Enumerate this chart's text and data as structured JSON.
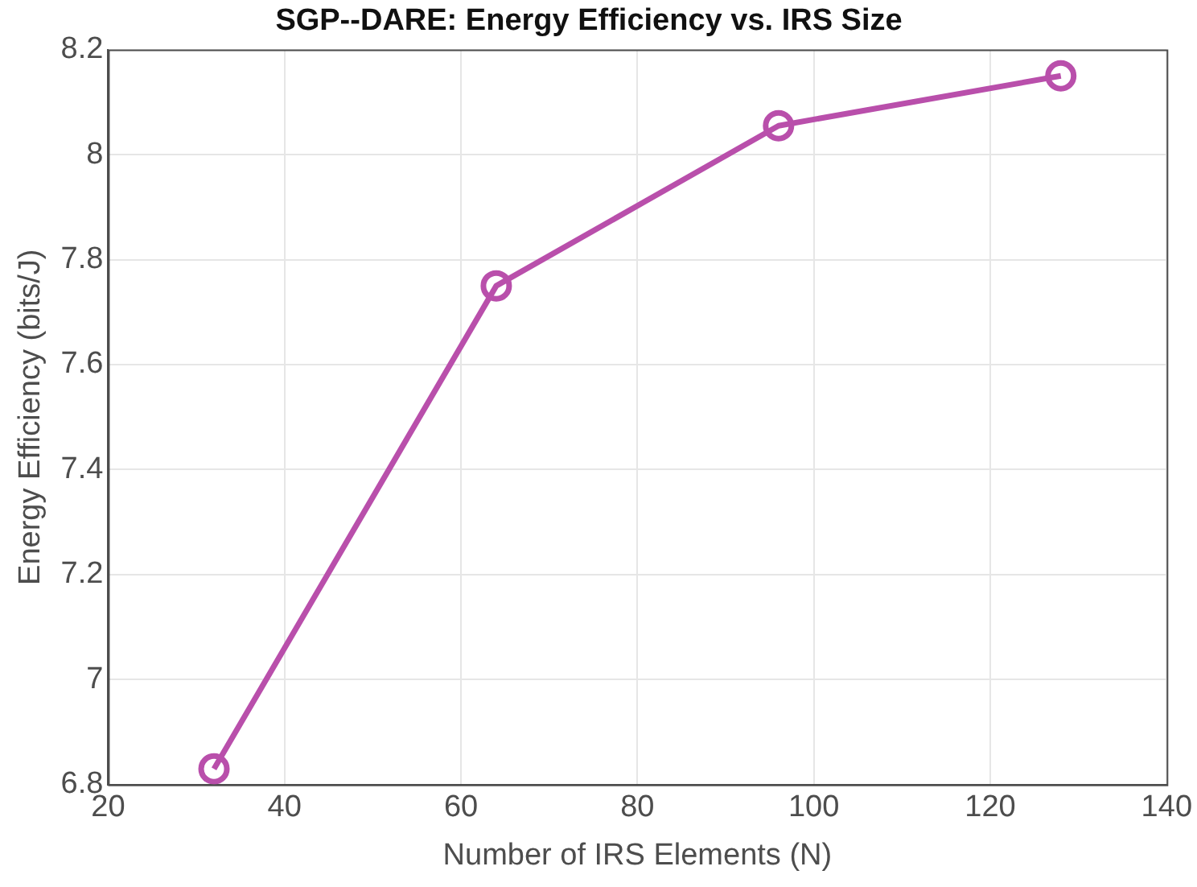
{
  "chart_data": {
    "type": "line",
    "title": "SGP--DARE: Energy Efficiency vs. IRS Size",
    "xlabel": "Number of IRS Elements (N)",
    "ylabel": "Energy Efficiency (bits/J)",
    "x": [
      32,
      64,
      96,
      128
    ],
    "series": [
      {
        "color": "#b94fab",
        "values": [
          6.83,
          7.75,
          8.055,
          8.15
        ]
      }
    ],
    "xlim": [
      20,
      140
    ],
    "xticks": [
      20,
      40,
      60,
      80,
      100,
      120,
      140
    ],
    "ylim": [
      6.8,
      8.2
    ],
    "yticks": [
      6.8,
      7,
      7.2,
      7.4,
      7.6,
      7.8,
      8,
      8.2
    ],
    "grid": true,
    "marker": "circle",
    "line_style": "solid",
    "legend": false
  }
}
